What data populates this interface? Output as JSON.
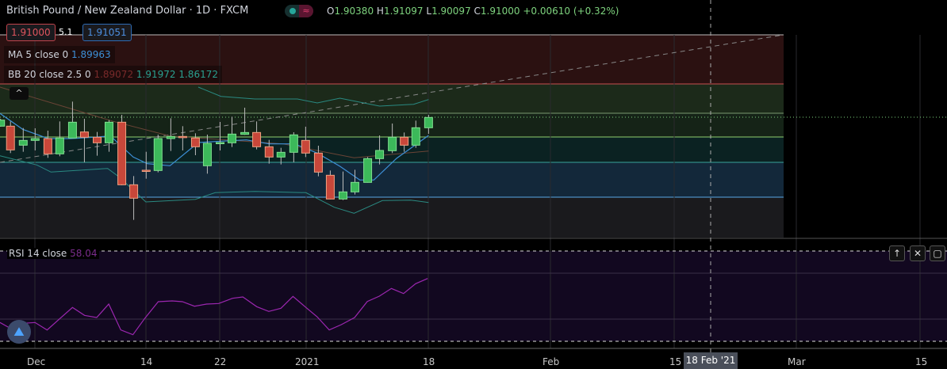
{
  "header": {
    "title": "British Pound / New Zealand Dollar · 1D · FXCM",
    "status_icon": "≈",
    "open_label": "O",
    "open": "1.90380",
    "high_label": "H",
    "high": "1.91097",
    "low_label": "L",
    "low": "1.90097",
    "close_label": "C",
    "close": "1.91000",
    "change": "+0.00610 (+0.32%)"
  },
  "prices": {
    "sell": "1.91000",
    "spread": "5.1",
    "buy": "1.91051"
  },
  "indicators": {
    "ma_label": "MA 5 close 0",
    "ma_value": "1.89963",
    "bb_label": "BB 20 close 2.5 0",
    "bb_mid": "1.89072",
    "bb_upper": "1.91972",
    "bb_lower": "1.86172",
    "collapse": "^"
  },
  "rsi": {
    "label": "RSI 14 close",
    "value": "58.04",
    "btn_up": "↑",
    "btn_close": "✕",
    "btn_max": "▢"
  },
  "axis": {
    "labels": [
      "Dec",
      "14",
      "22",
      "2021",
      "18",
      "Feb",
      "15",
      "Mar",
      "15"
    ],
    "crosshair": "18 Feb '21"
  },
  "colors": {
    "up": "#3cb95a",
    "down": "#c8473a",
    "ma": "#3d8fd6",
    "bb": "#2a8a82",
    "rsi": "#9c27b0"
  }
}
